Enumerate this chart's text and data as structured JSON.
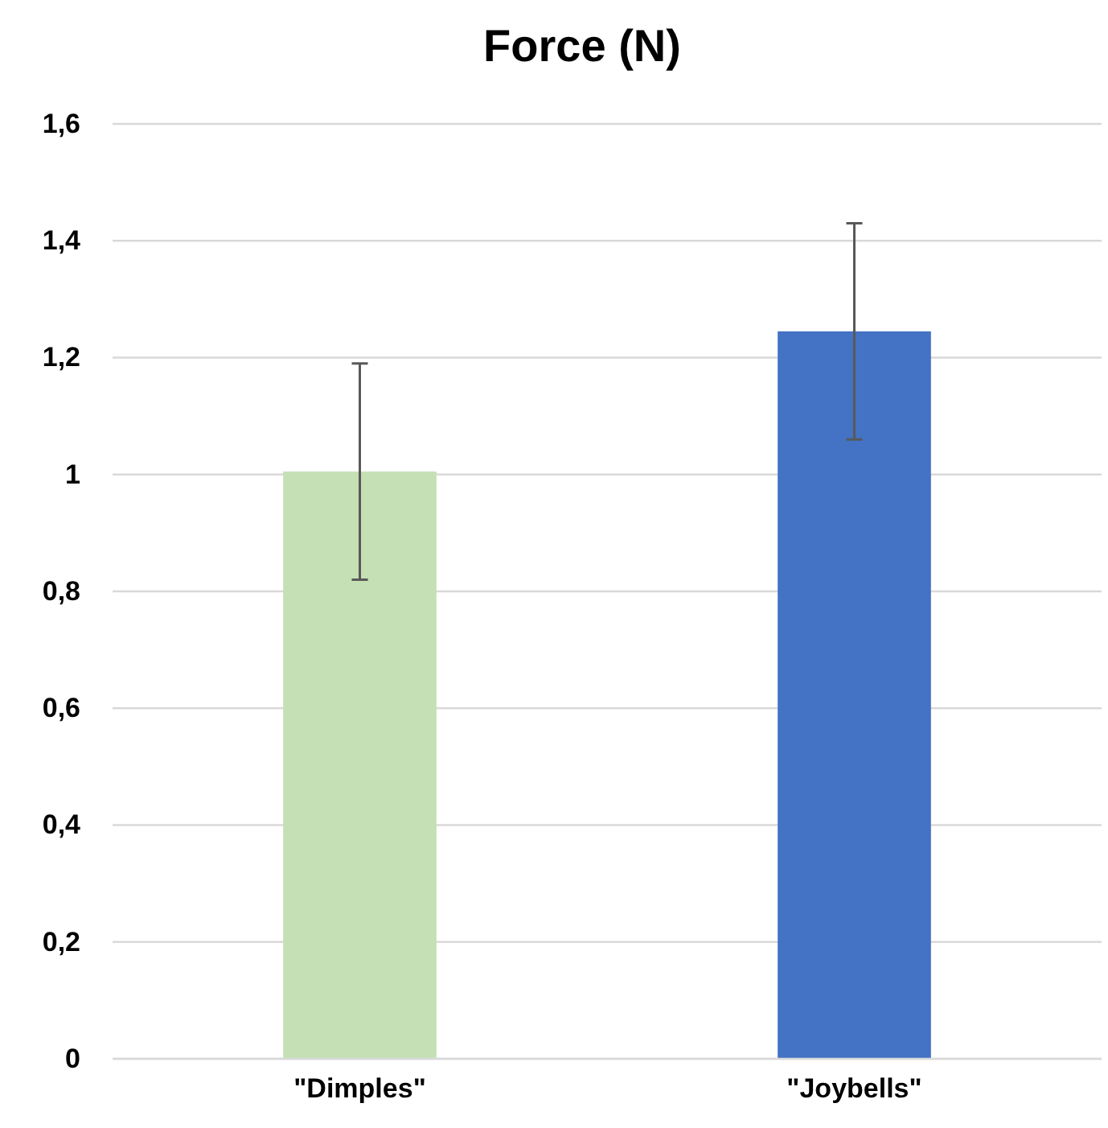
{
  "chart_data": {
    "type": "bar",
    "title": "Force (N)",
    "categories": [
      "\"Dimples\"",
      "\"Joybells\""
    ],
    "values": [
      1.005,
      1.245
    ],
    "colors": [
      "#c5e0b4",
      "#4472c4"
    ],
    "errors": [
      [
        0.82,
        1.19
      ],
      [
        1.06,
        1.43
      ]
    ],
    "ylim": [
      0,
      1.6
    ],
    "yticks": [
      0,
      {
        "value": 0.2,
        "label": "0,2"
      },
      {
        "value": 0.4,
        "label": "0,4"
      },
      {
        "value": 0.6,
        "label": "0,6"
      },
      {
        "value": 0.8,
        "label": "0,8"
      },
      1,
      {
        "value": 1.2,
        "label": "1,2"
      },
      {
        "value": 1.4,
        "label": "1,4"
      },
      {
        "value": 1.6,
        "label": "1,6"
      }
    ],
    "grid": "y"
  }
}
